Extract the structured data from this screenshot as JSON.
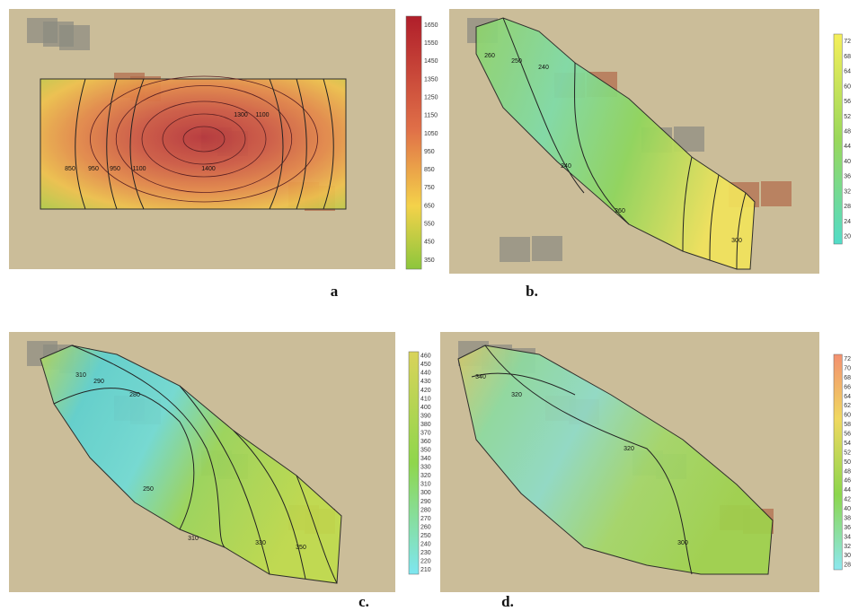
{
  "panels": [
    {
      "label": "a",
      "colorbar": [
        1650,
        1550,
        1450,
        1350,
        1250,
        1150,
        1050,
        950,
        850,
        750,
        650,
        550,
        450,
        350
      ],
      "contour_labels": [
        1400,
        1300,
        1100,
        950,
        850,
        950,
        1100
      ]
    },
    {
      "label": "b.",
      "colorbar": [
        72,
        68,
        64,
        60,
        56,
        52,
        48,
        44,
        40,
        36,
        32,
        28,
        24,
        20
      ],
      "contour_labels": [
        260,
        250,
        240,
        240,
        260,
        300
      ]
    },
    {
      "label": "c.",
      "colorbar": [
        460,
        450,
        440,
        430,
        420,
        410,
        400,
        390,
        380,
        370,
        360,
        350,
        340,
        330,
        320,
        310,
        300,
        290,
        280,
        270,
        260,
        250,
        240,
        230,
        220,
        210
      ],
      "contour_labels": [
        310,
        290,
        280,
        250,
        310,
        330,
        350
      ]
    },
    {
      "label": "d.",
      "colorbar": [
        72,
        70,
        68,
        66,
        64,
        62,
        60,
        58,
        56,
        54,
        52,
        50,
        48,
        46,
        44,
        42,
        40,
        38,
        36,
        34,
        32,
        30,
        28
      ],
      "contour_labels": [
        340,
        320,
        320,
        300
      ]
    }
  ]
}
